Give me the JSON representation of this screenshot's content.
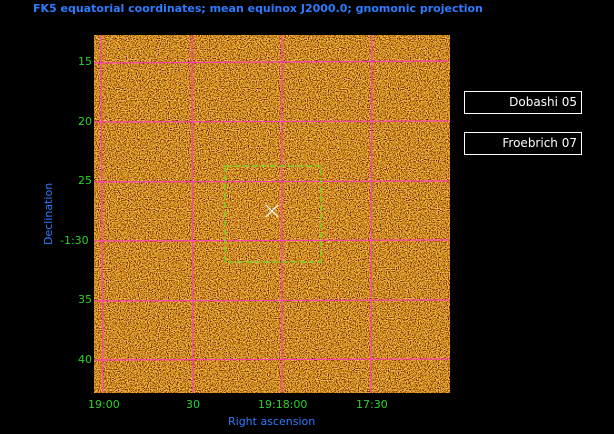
{
  "title": "FK5 equatorial coordinates; mean equinox J2000.0; gnomonic projection",
  "ylabel": "Declination",
  "xlabel": "Right ascension",
  "y_ticks": [
    "15",
    "20",
    "25",
    "-1:30",
    "35",
    "40"
  ],
  "x_ticks": [
    "19:00",
    "30",
    "19:18:00",
    "17:30"
  ],
  "legend": [
    "Dobashi 05",
    "Froebrich 07"
  ],
  "colors": {
    "grid": "#ff3fb4",
    "region": "#7ed321",
    "tick_text": "#2bd12b",
    "label_text": "#2d7cff",
    "legend_text": "#ffffff"
  }
}
